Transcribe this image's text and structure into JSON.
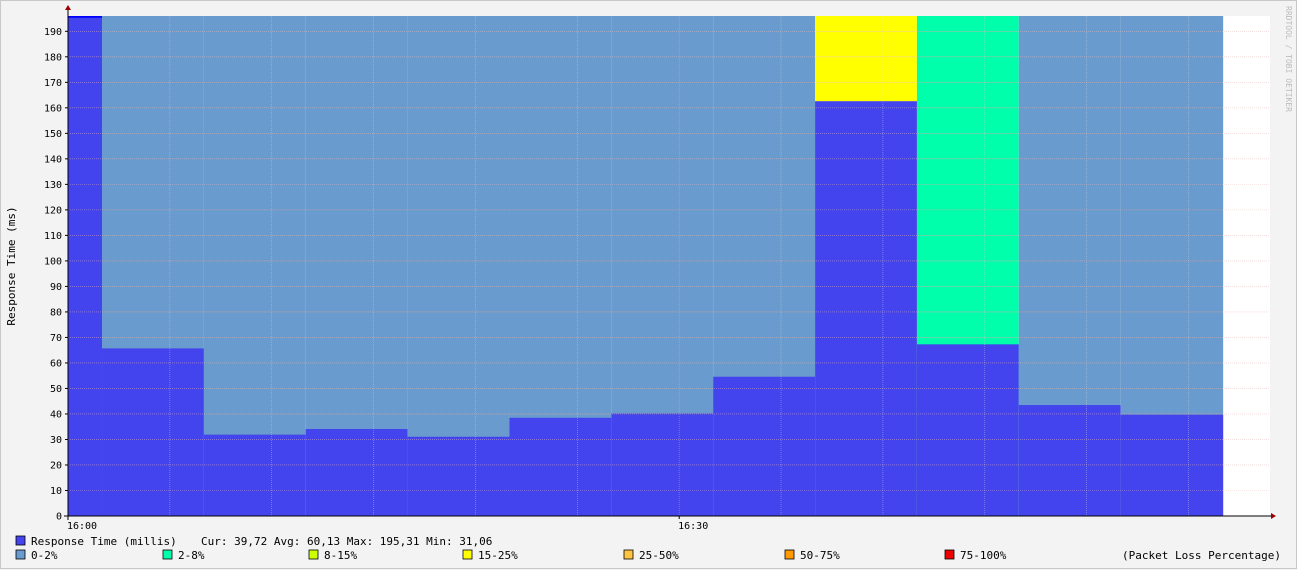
{
  "chart_data": {
    "type": "area",
    "title": "",
    "ylabel": "Response Time (ms)",
    "ylim": [
      0,
      196
    ],
    "yticks": [
      0,
      10,
      20,
      30,
      40,
      50,
      60,
      70,
      80,
      90,
      100,
      110,
      120,
      130,
      140,
      150,
      160,
      170,
      180,
      190
    ],
    "xticks": [
      {
        "label": "16:00",
        "t": 0
      },
      {
        "label": "16:30",
        "t": 30
      }
    ],
    "xlim": [
      0,
      59
    ],
    "data_end": 56.7,
    "grid": true,
    "intervals": [
      {
        "start": 0.0,
        "end": 1.67,
        "response_ms": 195.31,
        "loss_color": "#0000ff"
      },
      {
        "start": 1.67,
        "end": 6.67,
        "response_ms": 65.7,
        "loss_color": "#6a9bce"
      },
      {
        "start": 6.67,
        "end": 11.67,
        "response_ms": 31.9,
        "loss_color": "#6a9bce"
      },
      {
        "start": 11.67,
        "end": 16.67,
        "response_ms": 34.1,
        "loss_color": "#6a9bce"
      },
      {
        "start": 16.67,
        "end": 21.67,
        "response_ms": 31.06,
        "loss_color": "#6a9bce"
      },
      {
        "start": 21.67,
        "end": 26.67,
        "response_ms": 38.5,
        "loss_color": "#6a9bce"
      },
      {
        "start": 26.67,
        "end": 31.67,
        "response_ms": 40.2,
        "loss_color": "#6a9bce"
      },
      {
        "start": 31.67,
        "end": 36.67,
        "response_ms": 54.6,
        "loss_color": "#6a9bce"
      },
      {
        "start": 36.67,
        "end": 41.67,
        "response_ms": 162.6,
        "loss_color": "#ffff00"
      },
      {
        "start": 41.67,
        "end": 46.67,
        "response_ms": 67.3,
        "loss_color": "#00ffaa"
      },
      {
        "start": 46.67,
        "end": 51.67,
        "response_ms": 43.5,
        "loss_color": "#6a9bce"
      },
      {
        "start": 51.67,
        "end": 56.7,
        "response_ms": 39.72,
        "loss_color": "#6a9bce"
      }
    ],
    "colors": {
      "response": "#4444ee",
      "axis_arrow": "#9b0000",
      "grid_major": "#e5b8b8",
      "grid_minor": "#d8d8d8"
    },
    "legend": {
      "response": {
        "label": "Response Time (millis)",
        "color": "#4444ee",
        "stats": "Cur: 39,72   Avg: 60,13   Max: 195,31   Min: 31,06"
      },
      "loss_items": [
        {
          "label": "0-2%",
          "color": "#6a9bce"
        },
        {
          "label": "2-8%",
          "color": "#00ffaa"
        },
        {
          "label": "8-15%",
          "color": "#ccff00"
        },
        {
          "label": "15-25%",
          "color": "#ffff00"
        },
        {
          "label": "25-50%",
          "color": "#ffc444"
        },
        {
          "label": "50-75%",
          "color": "#ff9900"
        },
        {
          "label": "75-100%",
          "color": "#ee0000"
        }
      ],
      "loss_caption": "(Packet Loss Percentage)"
    },
    "watermark": "RRDTOOL / TOBI OETIKER"
  }
}
